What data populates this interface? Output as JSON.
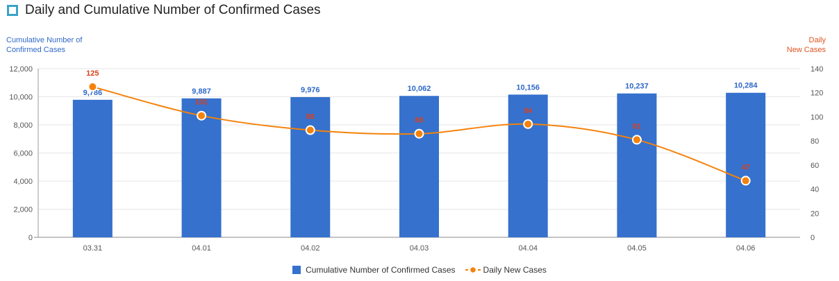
{
  "header": {
    "title": "Daily and Cumulative Number of Confirmed Cases"
  },
  "colors": {
    "bar": "#3571cd",
    "bar_label": "#2f68c8",
    "line": "#f5820b",
    "line_label": "#d9401c",
    "grid": "#e6e6e6",
    "axis_text": "#555555",
    "title_icon": "#3aa3c9"
  },
  "chart_data": {
    "type": "bar",
    "title": "Daily and Cumulative Number of Confirmed Cases",
    "ylabel_left": "Cumulative Number of\nConfirmed Cases",
    "ylabel_right": "Daily\nNew Cases",
    "categories": [
      "03.31",
      "04.01",
      "04.02",
      "04.03",
      "04.04",
      "04.05",
      "04.06"
    ],
    "ylim_left": [
      0,
      12000
    ],
    "yticks_left": [
      "0",
      "2,000",
      "4,000",
      "6,000",
      "8,000",
      "10,000",
      "12,000"
    ],
    "ylim_right": [
      0,
      140
    ],
    "yticks_right": [
      "0",
      "20",
      "40",
      "60",
      "80",
      "100",
      "120",
      "140"
    ],
    "grid": true,
    "legend_position": "bottom-center",
    "series": [
      {
        "name": "Cumulative Number of Confirmed Cases",
        "type": "bar",
        "axis": "left",
        "values": [
          9786,
          9887,
          9976,
          10062,
          10156,
          10237,
          10284
        ],
        "labels": [
          "9,786",
          "9,887",
          "9,976",
          "10,062",
          "10,156",
          "10,237",
          "10,284"
        ]
      },
      {
        "name": "Daily New Cases",
        "type": "line",
        "axis": "right",
        "values": [
          125,
          101,
          89,
          86,
          94,
          81,
          47
        ],
        "labels": [
          "125",
          "101",
          "89",
          "86",
          "94",
          "81",
          "47"
        ]
      }
    ]
  }
}
